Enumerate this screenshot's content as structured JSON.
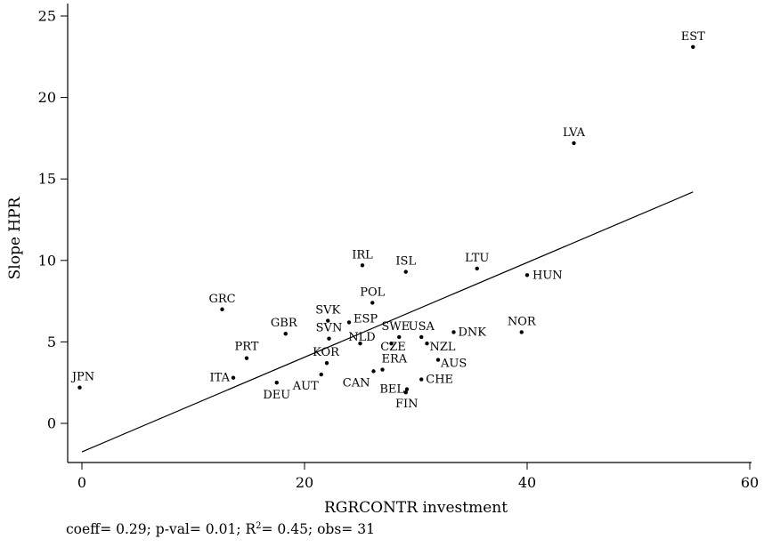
{
  "chart_data": {
    "type": "scatter",
    "xlabel": "RGRCONTR investment",
    "ylabel": "Slope HPR",
    "xlim": [
      -1.5,
      62
    ],
    "ylim": [
      -2.5,
      26
    ],
    "xticks": [
      0,
      20,
      40,
      60
    ],
    "yticks": [
      0,
      5,
      10,
      15,
      20,
      25
    ],
    "grid": false,
    "points": [
      {
        "label": "EST",
        "x": 54.9,
        "y": 23.1
      },
      {
        "label": "LVA",
        "x": 44.2,
        "y": 17.2
      },
      {
        "label": "HUN",
        "x": 40.0,
        "y": 9.1
      },
      {
        "label": "LTU",
        "x": 35.5,
        "y": 9.5
      },
      {
        "label": "IRL",
        "x": 25.2,
        "y": 9.7
      },
      {
        "label": "ISL",
        "x": 29.1,
        "y": 9.3
      },
      {
        "label": "POL",
        "x": 26.1,
        "y": 7.4
      },
      {
        "label": "GRC",
        "x": 12.6,
        "y": 7.0
      },
      {
        "label": "SVK",
        "x": 22.1,
        "y": 6.3
      },
      {
        "label": "ESP",
        "x": 24.0,
        "y": 6.2
      },
      {
        "label": "NOR",
        "x": 39.5,
        "y": 5.6
      },
      {
        "label": "DNK",
        "x": 33.4,
        "y": 5.6
      },
      {
        "label": "GBR",
        "x": 18.3,
        "y": 5.5
      },
      {
        "label": "USA",
        "x": 30.5,
        "y": 5.3
      },
      {
        "label": "SWE",
        "x": 28.5,
        "y": 5.3
      },
      {
        "label": "SVN",
        "x": 22.2,
        "y": 5.2
      },
      {
        "label": "NLD",
        "x": 25.0,
        "y": 4.9
      },
      {
        "label": "NZL",
        "x": 31.0,
        "y": 4.9
      },
      {
        "label": "CZE",
        "x": 27.8,
        "y": 4.9
      },
      {
        "label": "PRT",
        "x": 14.8,
        "y": 4.0
      },
      {
        "label": "AUS",
        "x": 32.0,
        "y": 3.9
      },
      {
        "label": "KOR",
        "x": 22.0,
        "y": 3.7
      },
      {
        "label": "ERA",
        "x": 27.0,
        "y": 3.3
      },
      {
        "label": "CAN",
        "x": 26.2,
        "y": 3.2
      },
      {
        "label": "AUT",
        "x": 21.5,
        "y": 3.0
      },
      {
        "label": "ITA",
        "x": 13.6,
        "y": 2.8
      },
      {
        "label": "CHE",
        "x": 30.5,
        "y": 2.7
      },
      {
        "label": "DEU",
        "x": 17.5,
        "y": 2.5
      },
      {
        "label": "JPN",
        "x": -0.2,
        "y": 2.2
      },
      {
        "label": "BEL",
        "x": 29.2,
        "y": 2.1
      },
      {
        "label": "FIN",
        "x": 29.1,
        "y": 1.9
      }
    ],
    "fit_line": {
      "x": [
        0,
        54.9
      ],
      "y": [
        -1.75,
        14.2
      ]
    }
  },
  "footnote": {
    "prefix": "coeff= 0.29; p-val= 0.01; R",
    "sup": "2",
    "suffix": "= 0.45; obs= 31"
  }
}
